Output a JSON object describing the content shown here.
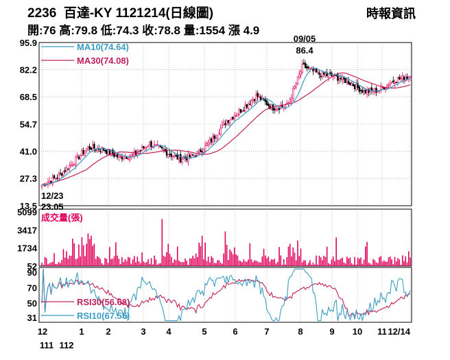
{
  "header": {
    "title": "2236  百達-KY 1121214(日線圖)",
    "source": "時報資訊",
    "stats": "開:76 高:79.8 低:74.3 收:78.8 量:1554 漲 4.9"
  },
  "colors": {
    "up": "#e0005a",
    "down": "#000000",
    "ma10": "#3a9cc0",
    "ma30": "#c0205a",
    "volume": "#e0005a",
    "rsi30": "#c0205a",
    "rsi10": "#3a9cc0",
    "grid": "#999999"
  },
  "chart_data": [
    {
      "type": "candlestick",
      "title": "",
      "ylim": [
        13.5,
        95.9
      ],
      "y_ticks": [
        "95.9",
        "82.2",
        "68.5",
        "54.7",
        "41.0",
        "27.3",
        "13.5"
      ],
      "series": [
        {
          "name": "MA10(74.64)",
          "last": 74.64
        },
        {
          "name": "MA30(74.08)",
          "last": 74.08
        }
      ],
      "annotations": [
        {
          "label": "09/05",
          "value": "86.4"
        },
        {
          "label": "12/23",
          "value": "23.05"
        }
      ],
      "close_path": [
        [
          "12/23",
          24
        ],
        [
          "1/05",
          28
        ],
        [
          "1/16",
          35
        ],
        [
          "2/03",
          43
        ],
        [
          "2/15",
          42
        ],
        [
          "3/02",
          38
        ],
        [
          "3/20",
          39
        ],
        [
          "4/06",
          45
        ],
        [
          "4/20",
          41
        ],
        [
          "5/05",
          37
        ],
        [
          "5/18",
          39
        ],
        [
          "6/01",
          46
        ],
        [
          "6/15",
          56
        ],
        [
          "7/01",
          62
        ],
        [
          "7/15",
          69
        ],
        [
          "8/01",
          63
        ],
        [
          "8/15",
          64
        ],
        [
          "9/05",
          84
        ],
        [
          "9/20",
          80
        ],
        [
          "10/05",
          79
        ],
        [
          "10/20",
          76
        ],
        [
          "11/05",
          71
        ],
        [
          "11/20",
          72
        ],
        [
          "12/01",
          77
        ],
        [
          "12/14",
          78.8
        ]
      ]
    },
    {
      "type": "bar",
      "title": "成交量(張)",
      "y_ticks": [
        "5099",
        "3417",
        "1734",
        "52"
      ],
      "ylim": [
        52,
        5099
      ]
    },
    {
      "type": "line",
      "title": "",
      "y_ticks": [
        "90",
        "70",
        "50",
        "31"
      ],
      "ylim": [
        31,
        90
      ],
      "series": [
        {
          "name": "RSI30(56.68)",
          "last": 56.68
        },
        {
          "name": "RSI10(67.55)",
          "last": 67.55
        }
      ]
    }
  ],
  "x_axis": {
    "month_labels": [
      "12",
      "1",
      "2",
      "3",
      "4",
      "5",
      "6",
      "7",
      "8",
      "9",
      "10",
      "11",
      "12/14"
    ],
    "year_labels": [
      "111",
      "112"
    ]
  }
}
